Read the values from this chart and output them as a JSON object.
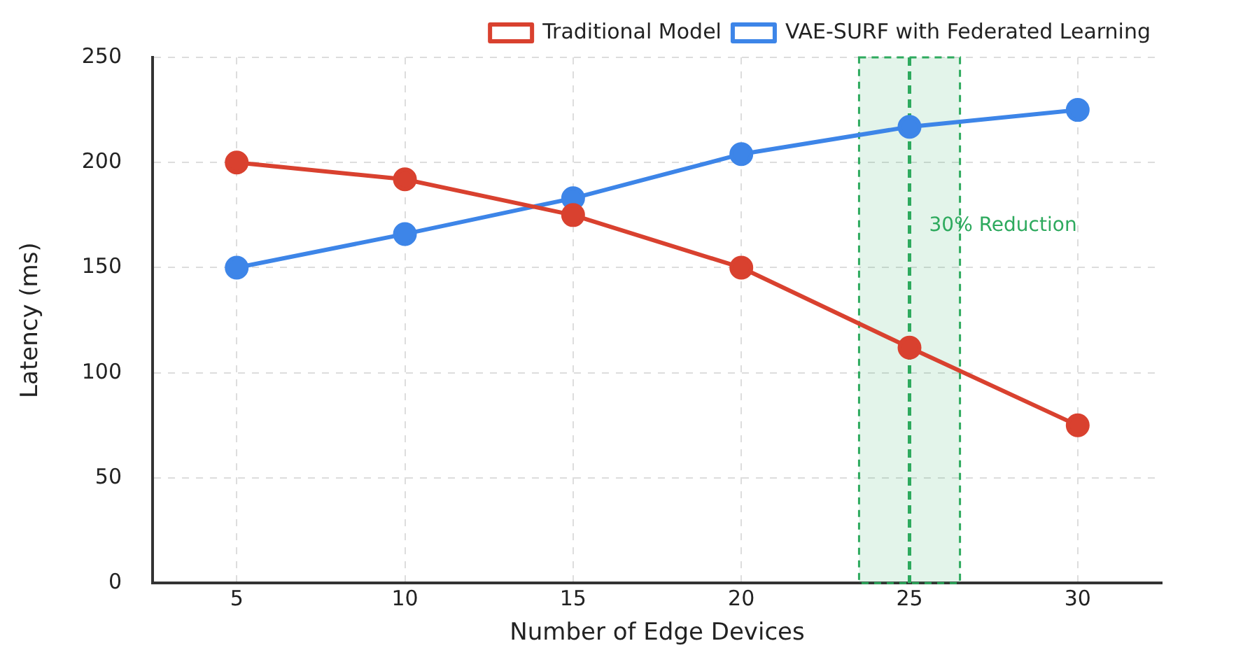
{
  "chart_data": {
    "type": "line",
    "xlabel": "Number of Edge Devices",
    "ylabel": "Latency (ms)",
    "x": [
      5,
      10,
      15,
      20,
      25,
      30
    ],
    "series": [
      {
        "name": "Traditional Model",
        "color": "#d9412f",
        "values": [
          200,
          192,
          175,
          150,
          112,
          75
        ]
      },
      {
        "name": "VAE-SURF with Federated Learning",
        "color": "#3d85e8",
        "values": [
          150,
          166,
          183,
          204,
          217,
          225
        ]
      }
    ],
    "xlim": [
      2.5,
      32.5
    ],
    "xticks": [
      5,
      10,
      15,
      20,
      25,
      30
    ],
    "ylim": [
      0,
      250
    ],
    "yticks": [
      0,
      50,
      100,
      150,
      200,
      250
    ],
    "grid": true,
    "legend": "top right",
    "marker": "circle",
    "line_style": "solid",
    "ref_lines": [
      {
        "axis": "x",
        "value": 25,
        "label": "30% Reduction",
        "color": "#2eaa5e",
        "line_style": "dashed"
      }
    ],
    "bands": [
      {
        "axis": "x",
        "from": 23.5,
        "to": 26.5,
        "color": "#2eaa5e"
      }
    ]
  }
}
